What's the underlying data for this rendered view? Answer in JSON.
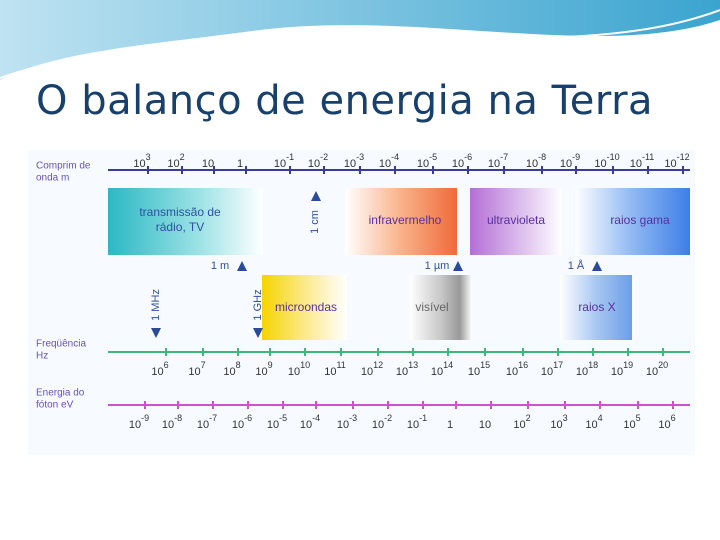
{
  "title": "O balanço de energia na Terra",
  "rows": {
    "wavelength": {
      "label": [
        "Comprim de",
        "onda m"
      ],
      "ticks": [
        {
          "base": "10",
          "exp": "3"
        },
        {
          "base": "10",
          "exp": "2"
        },
        {
          "base": "10"
        },
        {
          "base": "1"
        },
        {
          "base": "10",
          "exp": "-1"
        },
        {
          "base": "10",
          "exp": "-2"
        },
        {
          "base": "10",
          "exp": "-3"
        },
        {
          "base": "10",
          "exp": "-4"
        },
        {
          "base": "10",
          "exp": "-5"
        },
        {
          "base": "10",
          "exp": "-6"
        },
        {
          "base": "10",
          "exp": "-7"
        },
        {
          "base": "10",
          "exp": "-8"
        },
        {
          "base": "10",
          "exp": "-9"
        },
        {
          "base": "10",
          "exp": "-10"
        },
        {
          "base": "10",
          "exp": "-11"
        },
        {
          "base": "10",
          "exp": "-12"
        }
      ]
    },
    "frequency": {
      "label": [
        "Freqüência",
        "Hz"
      ],
      "ticks": [
        {
          "base": "10",
          "exp": "6"
        },
        {
          "base": "10",
          "exp": "7"
        },
        {
          "base": "10",
          "exp": "8"
        },
        {
          "base": "10",
          "exp": "9"
        },
        {
          "base": "10",
          "exp": "10"
        },
        {
          "base": "10",
          "exp": "11"
        },
        {
          "base": "10",
          "exp": "12"
        },
        {
          "base": "10",
          "exp": "13"
        },
        {
          "base": "10",
          "exp": "14"
        },
        {
          "base": "10",
          "exp": "15"
        },
        {
          "base": "10",
          "exp": "16"
        },
        {
          "base": "10",
          "exp": "17"
        },
        {
          "base": "10",
          "exp": "18"
        },
        {
          "base": "10",
          "exp": "19"
        },
        {
          "base": "10",
          "exp": "20"
        }
      ]
    },
    "energy": {
      "label": [
        "Energia do",
        "fóton eV"
      ],
      "ticks": [
        {
          "base": "10",
          "exp": "-9"
        },
        {
          "base": "10",
          "exp": "-8"
        },
        {
          "base": "10",
          "exp": "-7"
        },
        {
          "base": "10",
          "exp": "-6"
        },
        {
          "base": "10",
          "exp": "-5"
        },
        {
          "base": "10",
          "exp": "-4"
        },
        {
          "base": "10",
          "exp": "-3"
        },
        {
          "base": "10",
          "exp": "-2"
        },
        {
          "base": "10",
          "exp": "-1"
        },
        {
          "base": "1"
        },
        {
          "base": "10"
        },
        {
          "base": "10",
          "exp": "2"
        },
        {
          "base": "10",
          "exp": "3"
        },
        {
          "base": "10",
          "exp": "4"
        },
        {
          "base": "10",
          "exp": "5"
        },
        {
          "base": "10",
          "exp": "6"
        }
      ]
    }
  },
  "bands": {
    "radio": [
      "transmissão de",
      "rádio, TV"
    ],
    "infrared": "infravermelho",
    "ultraviolet": "ultravioleta",
    "gamma": "raios gama",
    "microwave": "microondas",
    "visible": "visível",
    "xray": "raios X"
  },
  "markers": {
    "cm": "1 cm",
    "m": "1 m",
    "um": "1 µm",
    "angstrom": "1 Å",
    "mhz": "1 MHz",
    "ghz": "1 GHz"
  }
}
